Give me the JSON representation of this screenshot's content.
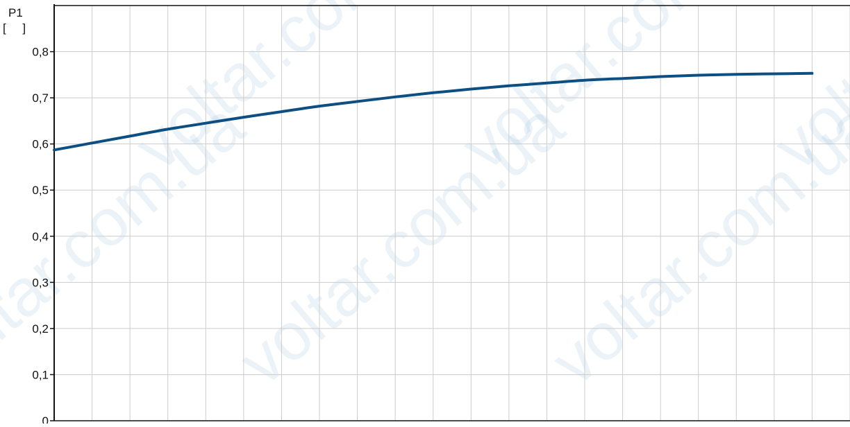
{
  "chart_data": {
    "type": "line",
    "title": "",
    "ylabel": "P1",
    "yunit": "[     ]",
    "xlabel": "",
    "ylim": [
      0,
      0.9
    ],
    "xlim": [
      0,
      21
    ],
    "grid": true,
    "y_ticks": [
      0,
      0.1,
      0.2,
      0.3,
      0.4,
      0.5,
      0.6,
      0.7,
      0.8
    ],
    "y_tick_labels": [
      "0",
      "0,1",
      "0,2",
      "0,3",
      "0,4",
      "0,5",
      "0,6",
      "0,7",
      "0,8"
    ],
    "x_grid_steps": 21,
    "series": [
      {
        "color": "#0d4f82",
        "x": [
          0,
          1,
          2,
          3,
          4,
          5,
          6,
          7,
          8,
          9,
          10,
          11,
          12,
          13,
          14,
          15,
          16,
          17,
          18,
          19,
          20
        ],
        "y": [
          0.587,
          0.602,
          0.617,
          0.632,
          0.645,
          0.658,
          0.67,
          0.682,
          0.692,
          0.702,
          0.711,
          0.719,
          0.726,
          0.732,
          0.738,
          0.742,
          0.746,
          0.749,
          0.751,
          0.752,
          0.753
        ]
      }
    ]
  },
  "watermark": {
    "text_top": "voltar.com",
    "text_bottom": "voltar.com.ua"
  },
  "colors": {
    "grid": "#cccccc",
    "axis": "#111111",
    "line": "#0d4f82"
  }
}
